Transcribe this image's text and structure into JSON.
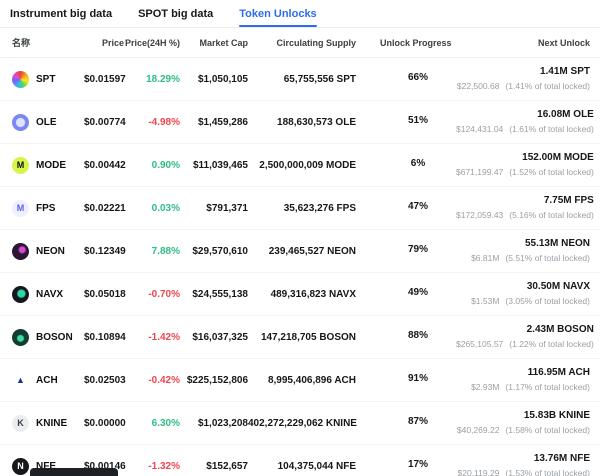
{
  "colors": {
    "accent": "#2b6cf0",
    "positive": "#2ebd85",
    "negative": "#ef454d",
    "bar_green": "#2eae68",
    "bar_tip": "#f0a13c",
    "bar_track": "#ededed"
  },
  "tabs": [
    {
      "label": "Instrument big data",
      "active": false
    },
    {
      "label": "SPOT big data",
      "active": false
    },
    {
      "label": "Token Unlocks",
      "active": true
    }
  ],
  "table": {
    "headers": {
      "name": "名称",
      "price": "Price",
      "change": "Price(24H %)",
      "market_cap": "Market Cap",
      "circulating_supply": "Circulating Supply",
      "unlock_progress": "Unlock Progress",
      "next_unlock": "Next Unlock"
    },
    "rows": [
      {
        "symbol": "SPT",
        "price": "$0.01597",
        "change": "18.29%",
        "change_dir": "up",
        "market_cap": "$1,050,105",
        "circulating_supply": "65,755,556 SPT",
        "progress_pct": 66,
        "progress_label": "66%",
        "progress_tip": false,
        "next_unlock_amount": "1.41M SPT",
        "next_unlock_value": "$22,500.68",
        "next_unlock_note": "(1.41% of total locked)",
        "icon": {
          "name": "spt-token-icon",
          "bg": "conic-gradient(#e8453c,#f5a623,#f8e71c,#4cd964,#35b5f2,#7b61f2,#e14cc8,#e8453c)",
          "label": "",
          "color": "#fff"
        }
      },
      {
        "symbol": "OLE",
        "price": "$0.00774",
        "change": "-4.98%",
        "change_dir": "down",
        "market_cap": "$1,459,286",
        "circulating_supply": "188,630,573 OLE",
        "progress_pct": 51,
        "progress_label": "51%",
        "progress_tip": false,
        "next_unlock_amount": "16.08M OLE",
        "next_unlock_value": "$124,431.04",
        "next_unlock_note": "(1.61% of total locked)",
        "icon": {
          "name": "ole-token-icon",
          "bg": "radial-gradient(circle at 50% 50%, #dfe3fc 0 34%, #7b86f2 42%)",
          "label": "",
          "color": "#fff"
        }
      },
      {
        "symbol": "MODE",
        "price": "$0.00442",
        "change": "0.90%",
        "change_dir": "up",
        "market_cap": "$11,039,465",
        "circulating_supply": "2,500,000,009 MODE",
        "progress_pct": 6,
        "progress_label": "6%",
        "progress_tip": false,
        "next_unlock_amount": "152.00M MODE",
        "next_unlock_value": "$671,199.47",
        "next_unlock_note": "(1.52% of total locked)",
        "icon": {
          "name": "mode-token-icon",
          "bg": "#d7f64b",
          "label": "M",
          "color": "#111"
        }
      },
      {
        "symbol": "FPS",
        "price": "$0.02221",
        "change": "0.03%",
        "change_dir": "up",
        "market_cap": "$791,371",
        "circulating_supply": "35,623,276 FPS",
        "progress_pct": 47,
        "progress_label": "47%",
        "progress_tip": true,
        "next_unlock_amount": "7.75M FPS",
        "next_unlock_value": "$172,059.43",
        "next_unlock_note": "(5.16% of total locked)",
        "icon": {
          "name": "fps-token-icon",
          "bg": "#eef0ff",
          "label": "M",
          "color": "#5b63ec"
        }
      },
      {
        "symbol": "NEON",
        "price": "$0.12349",
        "change": "7.88%",
        "change_dir": "up",
        "market_cap": "$29,570,610",
        "circulating_supply": "239,465,527 NEON",
        "progress_pct": 79,
        "progress_label": "79%",
        "progress_tip": true,
        "next_unlock_amount": "55.13M NEON",
        "next_unlock_value": "$6.81M",
        "next_unlock_note": "(5.51% of total locked)",
        "icon": {
          "name": "neon-token-icon",
          "bg": "radial-gradient(circle at 60% 40%, #d84bd0 0 18%, #2a1733 30%)",
          "label": "",
          "color": "#fff"
        }
      },
      {
        "symbol": "NAVX",
        "price": "$0.05018",
        "change": "-0.70%",
        "change_dir": "down",
        "market_cap": "$24,555,138",
        "circulating_supply": "489,316,823 NAVX",
        "progress_pct": 49,
        "progress_label": "49%",
        "progress_tip": true,
        "next_unlock_amount": "30.50M NAVX",
        "next_unlock_value": "$1.53M",
        "next_unlock_note": "(3.05% of total locked)",
        "icon": {
          "name": "navx-token-icon",
          "bg": "radial-gradient(circle at 55% 45%, #2fd6a8 0 26%, #14181c 36%)",
          "label": "",
          "color": "#fff"
        }
      },
      {
        "symbol": "BOSON",
        "price": "$0.10894",
        "change": "-1.42%",
        "change_dir": "down",
        "market_cap": "$16,037,325",
        "circulating_supply": "147,218,705 BOSON",
        "progress_pct": 88,
        "progress_label": "88%",
        "progress_tip": true,
        "next_unlock_amount": "2.43M BOSON",
        "next_unlock_value": "$265,105.57",
        "next_unlock_note": "(1.22% of total locked)",
        "icon": {
          "name": "boson-token-icon",
          "bg": "radial-gradient(circle at 50% 55%, #35e0a0 0 22%, #123c34 32%)",
          "label": "",
          "color": "#fff"
        }
      },
      {
        "symbol": "ACH",
        "price": "$0.02503",
        "change": "-0.42%",
        "change_dir": "down",
        "market_cap": "$225,152,806",
        "circulating_supply": "8,995,406,896 ACH",
        "progress_pct": 91,
        "progress_label": "91%",
        "progress_tip": false,
        "next_unlock_amount": "116.95M ACH",
        "next_unlock_value": "$2.93M",
        "next_unlock_note": "(1.17% of total locked)",
        "icon": {
          "name": "ach-token-icon",
          "bg": "#ffffff",
          "label": "▲",
          "color": "#26337a"
        }
      },
      {
        "symbol": "KNINE",
        "price": "$0.00000",
        "change": "6.30%",
        "change_dir": "up",
        "market_cap": "$1,023,208",
        "circulating_supply": "402,272,229,062 KNINE",
        "progress_pct": 87,
        "progress_label": "87%",
        "progress_tip": false,
        "next_unlock_amount": "15.83B KNINE",
        "next_unlock_value": "$40,269.22",
        "next_unlock_note": "(1.58% of total locked)",
        "icon": {
          "name": "knine-token-icon",
          "bg": "#ecedf0",
          "label": "K",
          "color": "#3a3f45"
        }
      },
      {
        "symbol": "NFE",
        "price": "$0.00146",
        "change": "-1.32%",
        "change_dir": "down",
        "market_cap": "$152,657",
        "circulating_supply": "104,375,044 NFE",
        "progress_pct": 17,
        "progress_label": "17%",
        "progress_tip": false,
        "next_unlock_amount": "13.76M NFE",
        "next_unlock_value": "$20,119.29",
        "next_unlock_note": "(1.53% of total locked)",
        "icon": {
          "name": "nfe-token-icon",
          "bg": "#17181b",
          "label": "N",
          "color": "#ffffff"
        }
      }
    ]
  }
}
